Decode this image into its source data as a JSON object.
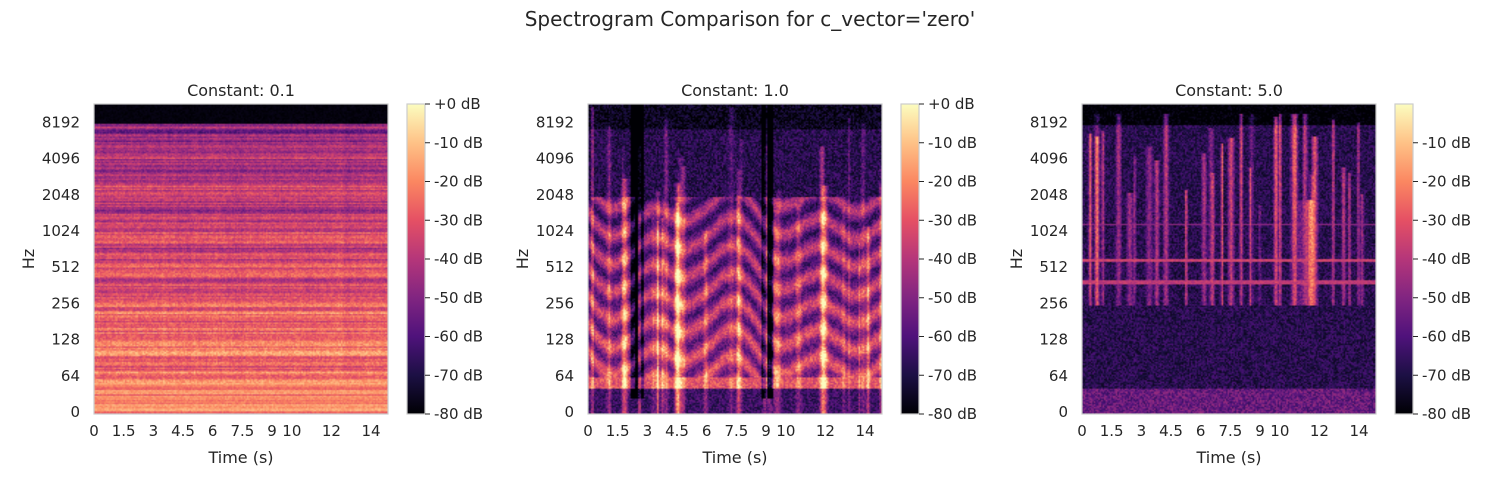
{
  "chart_data": {
    "title": "Spectrogram Comparison for c_vector='zero'",
    "type": "heatmap",
    "colormap": "magma",
    "grid": false,
    "panels": [
      {
        "title": "Constant: 0.1",
        "xlabel": "Time (s)",
        "ylabel": "Hz",
        "xlim": [
          0,
          14.86
        ],
        "x_ticks": [
          "0",
          "1.5",
          "3",
          "4.5",
          "6",
          "7.5",
          "9",
          "10",
          "12",
          "14"
        ],
        "y_scale": "log2",
        "y_ticks": [
          "0",
          "64",
          "128",
          "256",
          "512",
          "1024",
          "2048",
          "4096",
          "8192"
        ],
        "colorbar_ticks": [
          "+0 dB",
          "-10 dB",
          "-20 dB",
          "-30 dB",
          "-40 dB",
          "-50 dB",
          "-60 dB",
          "-70 dB",
          "-80 dB"
        ],
        "colorbar_range_db": [
          -80,
          0
        ],
        "pattern": "dense stationary energy; horizontal bands; silent above ~9000 Hz"
      },
      {
        "title": "Constant: 1.0",
        "xlabel": "Time (s)",
        "ylabel": "Hz",
        "xlim": [
          0,
          14.86
        ],
        "x_ticks": [
          "0",
          "1.5",
          "3",
          "4.5",
          "6",
          "7.5",
          "9",
          "10",
          "12",
          "14"
        ],
        "y_scale": "log2",
        "y_ticks": [
          "0",
          "64",
          "128",
          "256",
          "512",
          "1024",
          "2048",
          "4096",
          "8192"
        ],
        "colorbar_ticks": [
          "+0 dB",
          "-10 dB",
          "-20 dB",
          "-30 dB",
          "-40 dB",
          "-50 dB",
          "-60 dB",
          "-70 dB",
          "-80 dB"
        ],
        "colorbar_range_db": [
          -80,
          0
        ],
        "pattern": "speech-like harmonics 100-1000 Hz with vertical onset streaks"
      },
      {
        "title": "Constant: 5.0",
        "xlabel": "Time (s)",
        "ylabel": "Hz",
        "xlim": [
          0,
          14.86
        ],
        "x_ticks": [
          "0",
          "1.5",
          "3",
          "4.5",
          "6",
          "7.5",
          "9",
          "10",
          "12",
          "14"
        ],
        "y_scale": "log2",
        "y_ticks": [
          "0",
          "64",
          "128",
          "256",
          "512",
          "1024",
          "2048",
          "4096",
          "8192"
        ],
        "colorbar_ticks": [
          "-10 dB",
          "-20 dB",
          "-30 dB",
          "-40 dB",
          "-50 dB",
          "-60 dB",
          "-70 dB",
          "-80 dB"
        ],
        "colorbar_range_db": [
          -80,
          0
        ],
        "pattern": "sparse high-frequency streaks; horizontal tones near 600 Hz and 400 Hz"
      }
    ]
  }
}
